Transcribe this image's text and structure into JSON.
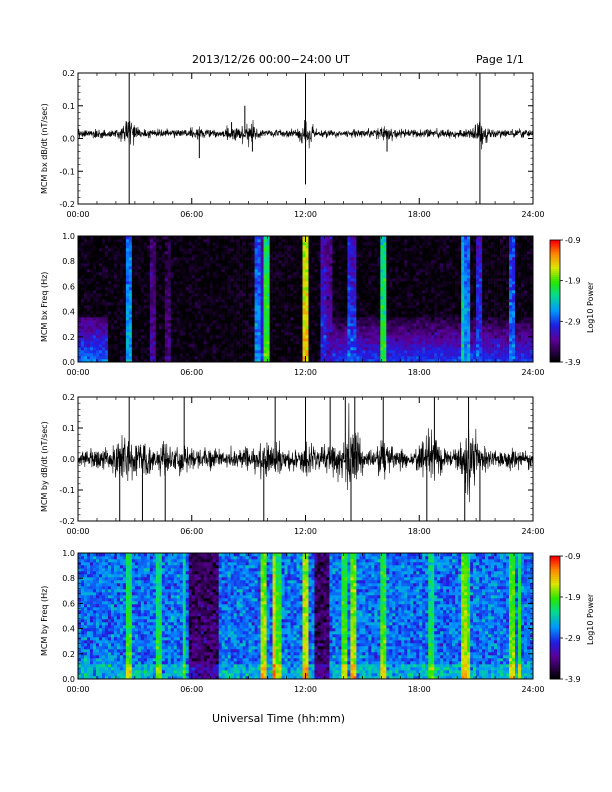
{
  "header": {
    "title": "2013/12/26  00:00−24:00 UT",
    "page": "Page 1/1"
  },
  "footer": {
    "xlabel": "Universal Time (hh:mm)"
  },
  "chart_data": [
    {
      "type": "line",
      "ylabel": "MCM bx dB/dt (nT/sec)",
      "xlim": [
        0,
        24
      ],
      "ylim": [
        -0.2,
        0.2
      ],
      "x_ticks": [
        "00:00",
        "06:00",
        "12:00",
        "18:00",
        "24:00"
      ],
      "y_ticks": [
        "-0.2",
        "-0.1",
        "0.0",
        "0.1",
        "0.2"
      ],
      "baseline": 0.015,
      "noise_amplitude": 0.012,
      "spikes": [
        {
          "t": 2.7,
          "v": 0.2
        },
        {
          "t": 2.7,
          "v": -0.2
        },
        {
          "t": 6.4,
          "v": -0.06
        },
        {
          "t": 8.1,
          "v": 0.05
        },
        {
          "t": 8.8,
          "v": 0.1
        },
        {
          "t": 9.2,
          "v": -0.04
        },
        {
          "t": 12.0,
          "v": 0.2
        },
        {
          "t": 12.0,
          "v": -0.14
        },
        {
          "t": 16.3,
          "v": -0.04
        },
        {
          "t": 21.2,
          "v": 0.2
        },
        {
          "t": 21.2,
          "v": -0.2
        }
      ]
    },
    {
      "type": "heatmap",
      "ylabel": "MCM bx Freq (Hz)",
      "xlim": [
        0,
        24
      ],
      "ylim": [
        0.0,
        1.0
      ],
      "x_ticks": [
        "00:00",
        "06:00",
        "12:00",
        "18:00",
        "24:00"
      ],
      "y_ticks": [
        "0.0",
        "0.2",
        "0.4",
        "0.6",
        "0.8",
        "1.0"
      ],
      "colorbar": {
        "label": "Log10 Power",
        "ticks": [
          "-0.9",
          "-1.9",
          "-2.9",
          "-3.9"
        ],
        "range": [
          -3.9,
          -0.9
        ]
      },
      "background_level": -3.85,
      "low_freq_band": [
        {
          "t0": 0,
          "t1": 1.5,
          "level": -3.1
        },
        {
          "t0": 13.5,
          "t1": 24,
          "level": -3.3
        }
      ],
      "bright_columns": [
        {
          "t": 2.7,
          "level": -2.5
        },
        {
          "t": 3.9,
          "level": -3.3
        },
        {
          "t": 4.8,
          "level": -3.4
        },
        {
          "t": 9.5,
          "level": -2.6
        },
        {
          "t": 9.7,
          "level": -3.0
        },
        {
          "t": 10.0,
          "level": -1.9
        },
        {
          "t": 12.0,
          "level": -1.4
        },
        {
          "t": 12.9,
          "level": -3.0
        },
        {
          "t": 13.3,
          "level": -3.2
        },
        {
          "t": 14.3,
          "level": -2.8
        },
        {
          "t": 14.5,
          "level": -2.9
        },
        {
          "t": 16.1,
          "level": -2.0
        },
        {
          "t": 20.3,
          "level": -2.3
        },
        {
          "t": 20.5,
          "level": -2.6
        },
        {
          "t": 21.2,
          "level": -2.9
        },
        {
          "t": 22.9,
          "level": -2.7
        }
      ]
    },
    {
      "type": "line",
      "ylabel": "MCM by dB/dt (nT/sec)",
      "xlim": [
        0,
        24
      ],
      "ylim": [
        -0.2,
        0.2
      ],
      "x_ticks": [
        "00:00",
        "06:00",
        "12:00",
        "18:00",
        "24:00"
      ],
      "y_ticks": [
        "-0.2",
        "-0.1",
        "0.0",
        "0.1",
        "0.2"
      ],
      "baseline": 0.0,
      "noise_amplitude": 0.03,
      "spikes": [
        {
          "t": 2.2,
          "v": -0.2
        },
        {
          "t": 2.7,
          "v": 0.2
        },
        {
          "t": 3.4,
          "v": -0.2
        },
        {
          "t": 4.6,
          "v": -0.2
        },
        {
          "t": 5.6,
          "v": 0.2
        },
        {
          "t": 9.8,
          "v": -0.2
        },
        {
          "t": 10.4,
          "v": 0.2
        },
        {
          "t": 12.0,
          "v": 0.2
        },
        {
          "t": 13.3,
          "v": 0.2
        },
        {
          "t": 14.1,
          "v": 0.2
        },
        {
          "t": 14.4,
          "v": -0.2
        },
        {
          "t": 14.6,
          "v": 0.2
        },
        {
          "t": 16.1,
          "v": 0.2
        },
        {
          "t": 18.4,
          "v": -0.2
        },
        {
          "t": 18.8,
          "v": 0.2
        },
        {
          "t": 20.4,
          "v": -0.2
        },
        {
          "t": 20.6,
          "v": 0.2
        },
        {
          "t": 21.2,
          "v": -0.2
        }
      ]
    },
    {
      "type": "heatmap",
      "ylabel": "MCM by Freq (Hz)",
      "xlim": [
        0,
        24
      ],
      "ylim": [
        0.0,
        1.0
      ],
      "x_ticks": [
        "00:00",
        "06:00",
        "12:00",
        "18:00",
        "24:00"
      ],
      "y_ticks": [
        "0.0",
        "0.2",
        "0.4",
        "0.6",
        "0.8",
        "1.0"
      ],
      "colorbar": {
        "label": "Log10 Power",
        "ticks": [
          "-0.9",
          "-1.9",
          "-2.9",
          "-3.9"
        ],
        "range": [
          -3.9,
          -0.9
        ]
      },
      "background_level": -2.75,
      "dark_intervals": [
        {
          "t0": 5.8,
          "t1": 7.4
        },
        {
          "t0": 12.5,
          "t1": 13.2
        }
      ],
      "bright_columns": [
        {
          "t": 2.7,
          "level": -1.9
        },
        {
          "t": 4.2,
          "level": -2.0
        },
        {
          "t": 5.6,
          "level": -2.1
        },
        {
          "t": 9.8,
          "level": -1.6
        },
        {
          "t": 10.4,
          "level": -1.4
        },
        {
          "t": 10.6,
          "level": -1.8
        },
        {
          "t": 12.0,
          "level": -1.5
        },
        {
          "t": 14.1,
          "level": -1.8
        },
        {
          "t": 14.5,
          "level": -1.6
        },
        {
          "t": 16.1,
          "level": -1.8
        },
        {
          "t": 18.6,
          "level": -2.0
        },
        {
          "t": 20.4,
          "level": -1.6
        },
        {
          "t": 20.6,
          "level": -1.8
        },
        {
          "t": 22.9,
          "level": -1.7
        },
        {
          "t": 23.3,
          "level": -1.9
        }
      ]
    }
  ]
}
